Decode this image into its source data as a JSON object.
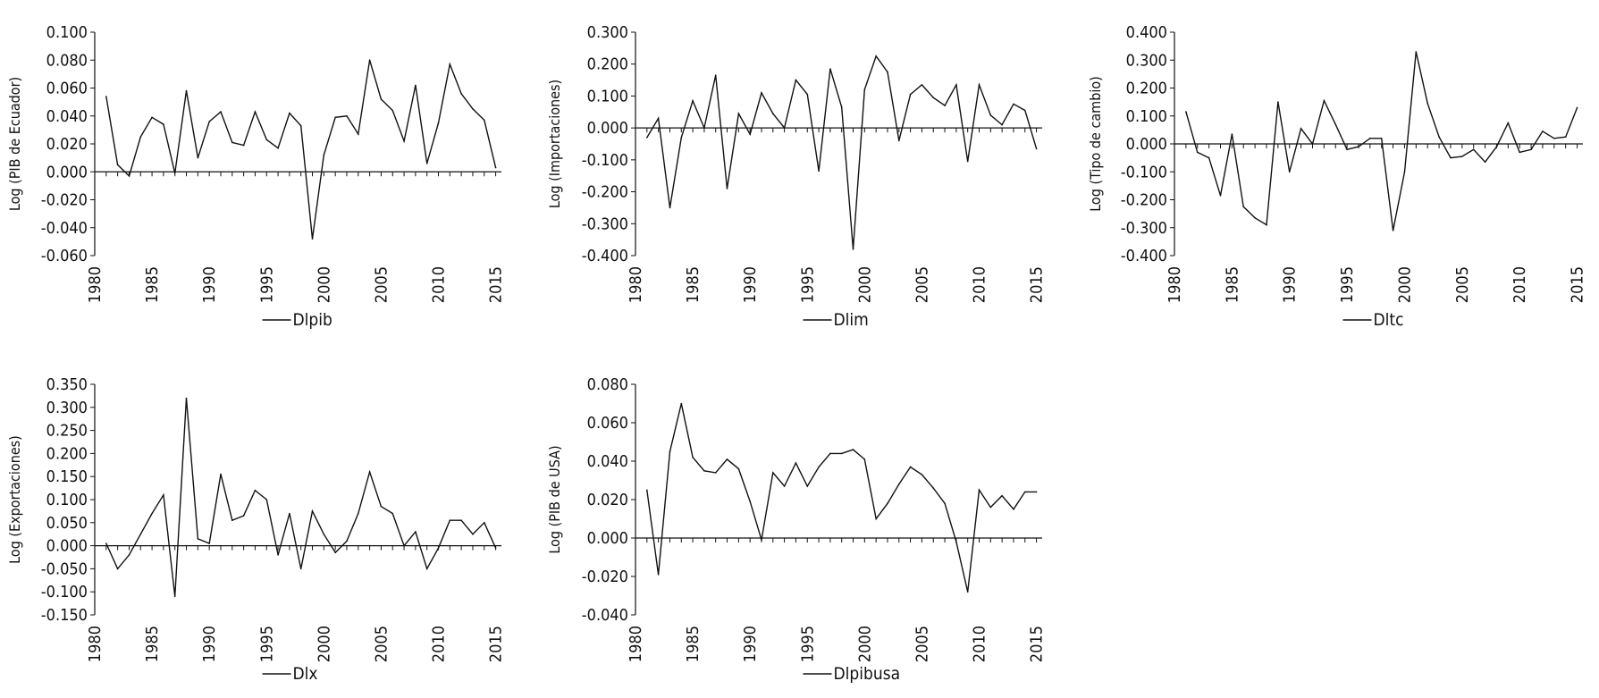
{
  "chart_data": [
    {
      "type": "line",
      "ylabel": "Log (PIB de Ecuador)",
      "ytick_labels": [
        "0.100",
        "0.080",
        "0.060",
        "0.040",
        "0.020",
        "0.000",
        "-0.020",
        "-0.040",
        "-0.060"
      ],
      "ylim": [
        -0.06,
        0.1
      ],
      "xtick_labels": [
        "1980",
        "1985",
        "1990",
        "1995",
        "2000",
        "2005",
        "2010",
        "2015"
      ],
      "xlim": [
        1980,
        2015.5
      ],
      "series": [
        {
          "name": "Dlpib",
          "x": [
            1981,
            1982,
            1983,
            1984,
            1985,
            1986,
            1987,
            1988,
            1989,
            1990,
            1991,
            1992,
            1993,
            1994,
            1995,
            1996,
            1997,
            1998,
            1999,
            2000,
            2001,
            2002,
            2003,
            2004,
            2005,
            2006,
            2007,
            2008,
            2009,
            2010,
            2011,
            2012,
            2013,
            2014,
            2015
          ],
          "values": [
            0.054,
            0.005,
            -0.003,
            0.025,
            0.039,
            0.034,
            -0.001,
            0.058,
            0.01,
            0.036,
            0.043,
            0.021,
            0.019,
            0.043,
            0.023,
            0.017,
            0.042,
            0.033,
            -0.048,
            0.012,
            0.039,
            0.04,
            0.027,
            0.08,
            0.052,
            0.044,
            0.022,
            0.062,
            0.006,
            0.035,
            0.077,
            0.056,
            0.045,
            0.037,
            0.003
          ]
        }
      ]
    },
    {
      "type": "line",
      "ylabel": "Log (Importaciones)",
      "ytick_labels": [
        "0.300",
        "0.200",
        "0.100",
        "0.000",
        "-0.100",
        "-0.200",
        "-0.300",
        "-0.400"
      ],
      "ylim": [
        -0.4,
        0.3
      ],
      "xtick_labels": [
        "1980",
        "1985",
        "1990",
        "1995",
        "2000",
        "2005",
        "2010",
        "2015"
      ],
      "xlim": [
        1980,
        2015.5
      ],
      "series": [
        {
          "name": "Dlim",
          "x": [
            1981,
            1982,
            1983,
            1984,
            1985,
            1986,
            1987,
            1988,
            1989,
            1990,
            1991,
            1992,
            1993,
            1994,
            1995,
            1996,
            1997,
            1998,
            1999,
            2000,
            2001,
            2002,
            2003,
            2004,
            2005,
            2006,
            2007,
            2008,
            2009,
            2010,
            2011,
            2012,
            2013,
            2014,
            2015
          ],
          "values": [
            -0.03,
            0.03,
            -0.25,
            -0.03,
            0.085,
            0.0,
            0.165,
            -0.19,
            0.045,
            -0.02,
            0.11,
            0.045,
            0.0,
            0.15,
            0.105,
            -0.135,
            0.185,
            0.065,
            -0.38,
            0.12,
            0.225,
            0.175,
            -0.04,
            0.105,
            0.135,
            0.095,
            0.07,
            0.135,
            -0.105,
            0.135,
            0.04,
            0.01,
            0.075,
            0.055,
            -0.065
          ]
        }
      ]
    },
    {
      "type": "line",
      "ylabel": "Log (Tipo de cambio)",
      "ytick_labels": [
        "0.400",
        "0.300",
        "0.200",
        "0.100",
        "0.000",
        "-0.100",
        "-0.200",
        "-0.300",
        "-0.400"
      ],
      "ylim": [
        -0.4,
        0.4
      ],
      "xtick_labels": [
        "1980",
        "1985",
        "1990",
        "1995",
        "2000",
        "2005",
        "2010",
        "2015"
      ],
      "xlim": [
        1980,
        2015.5
      ],
      "series": [
        {
          "name": "Dltc",
          "x": [
            1981,
            1982,
            1983,
            1984,
            1985,
            1986,
            1987,
            1988,
            1989,
            1990,
            1991,
            1992,
            1993,
            1994,
            1995,
            1996,
            1997,
            1998,
            1999,
            2000,
            2001,
            2002,
            2003,
            2004,
            2005,
            2006,
            2007,
            2008,
            2009,
            2010,
            2011,
            2012,
            2013,
            2014,
            2015
          ],
          "values": [
            0.115,
            -0.03,
            -0.05,
            -0.185,
            0.035,
            -0.225,
            -0.265,
            -0.29,
            0.15,
            -0.1,
            0.055,
            0.0,
            0.155,
            0.07,
            -0.02,
            -0.01,
            0.02,
            0.02,
            -0.31,
            -0.1,
            0.33,
            0.145,
            0.025,
            -0.05,
            -0.045,
            -0.02,
            -0.065,
            -0.01,
            0.075,
            -0.03,
            -0.02,
            0.045,
            0.02,
            0.025,
            0.13
          ]
        }
      ]
    },
    {
      "type": "line",
      "ylabel": "Log  (Exportaciones)",
      "ytick_labels": [
        "0.350",
        "0.300",
        "0.250",
        "0.200",
        "0.150",
        "0.100",
        "0.050",
        "0.000",
        "-0.050",
        "-0.100",
        "-0.150"
      ],
      "ylim": [
        -0.15,
        0.35
      ],
      "xtick_labels": [
        "1980",
        "1985",
        "1990",
        "1995",
        "2000",
        "2005",
        "2010",
        "2015"
      ],
      "xlim": [
        1980,
        2015.5
      ],
      "series": [
        {
          "name": "Dlx",
          "x": [
            1981,
            1982,
            1983,
            1984,
            1985,
            1986,
            1987,
            1988,
            1989,
            1990,
            1991,
            1992,
            1993,
            1994,
            1995,
            1996,
            1997,
            1998,
            1999,
            2000,
            2001,
            2002,
            2003,
            2004,
            2005,
            2006,
            2007,
            2008,
            2009,
            2010,
            2011,
            2012,
            2013,
            2014,
            2015
          ],
          "values": [
            0.005,
            -0.05,
            -0.02,
            0.025,
            0.07,
            0.11,
            -0.11,
            0.32,
            0.015,
            0.005,
            0.155,
            0.055,
            0.065,
            0.12,
            0.1,
            -0.02,
            0.07,
            -0.05,
            0.075,
            0.025,
            -0.015,
            0.01,
            0.07,
            0.16,
            0.085,
            0.07,
            0.0,
            0.03,
            -0.05,
            -0.005,
            0.055,
            0.055,
            0.025,
            0.05,
            -0.005
          ]
        }
      ]
    },
    {
      "type": "line",
      "ylabel": "Log (PIB de USA)",
      "ytick_labels": [
        "0.080",
        "0.060",
        "0.040",
        "0.020",
        "0.000",
        "-0.020",
        "-0.040"
      ],
      "ylim": [
        -0.04,
        0.08
      ],
      "xtick_labels": [
        "1980",
        "1985",
        "1990",
        "1995",
        "2000",
        "2005",
        "2010",
        "2015"
      ],
      "xlim": [
        1980,
        2015.5
      ],
      "series": [
        {
          "name": "Dlpibusa",
          "x": [
            1981,
            1982,
            1983,
            1984,
            1985,
            1986,
            1987,
            1988,
            1989,
            1990,
            1991,
            1992,
            1993,
            1994,
            1995,
            1996,
            1997,
            1998,
            1999,
            2000,
            2001,
            2002,
            2003,
            2004,
            2005,
            2006,
            2007,
            2008,
            2009,
            2010,
            2011,
            2012,
            2013,
            2014,
            2015
          ],
          "values": [
            0.025,
            -0.019,
            0.045,
            0.07,
            0.042,
            0.035,
            0.034,
            0.041,
            0.036,
            0.019,
            -0.001,
            0.034,
            0.027,
            0.039,
            0.027,
            0.037,
            0.044,
            0.044,
            0.046,
            0.041,
            0.01,
            0.018,
            0.028,
            0.037,
            0.033,
            0.026,
            0.018,
            -0.002,
            -0.028,
            0.025,
            0.016,
            0.022,
            0.015,
            0.024,
            0.024
          ]
        }
      ]
    }
  ]
}
